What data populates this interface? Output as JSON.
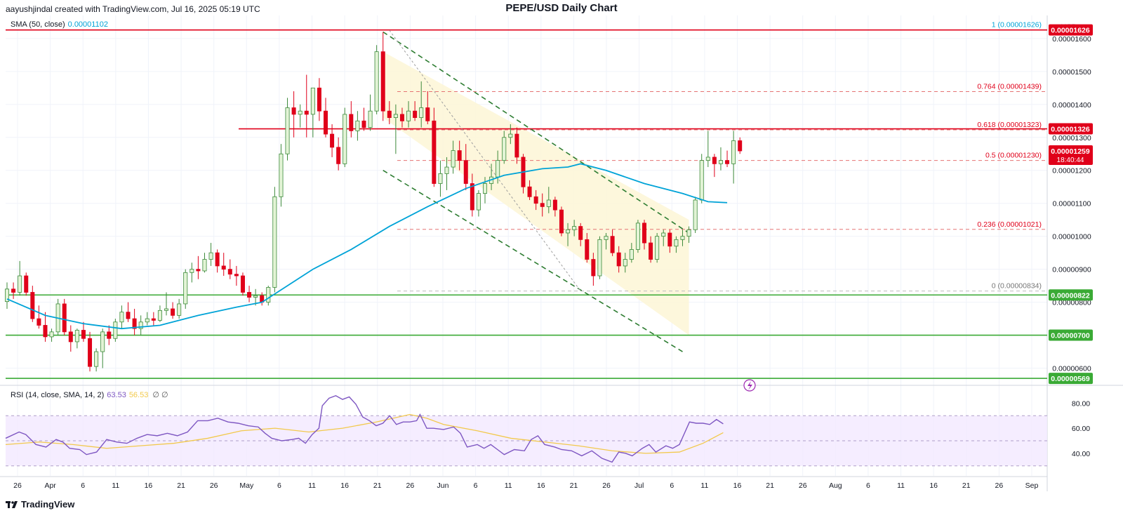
{
  "header": {
    "author_line": "aayushjindal created with TradingView.com, Jul 16, 2025 05:19 UTC",
    "title": "PEPE/USD Daily Chart"
  },
  "legend": {
    "sma_label": "SMA (50, close)",
    "sma_value": "0.00001102",
    "rsi_label": "RSI (14, close, SMA, 14, 2)",
    "rsi_value": "63.53",
    "rsi_sma_value": "56.53",
    "rsi_extra": "∅ ∅"
  },
  "footer": {
    "logo_text": "TradingView"
  },
  "currency": "USD",
  "colors": {
    "up": "#26a69a",
    "up_body": "#e3f4d6",
    "down": "#e0001a",
    "sma": "#00a3d7",
    "rsi": "#7e57c2",
    "rsi_sma": "#f2c94c",
    "support": "#3aaa35",
    "resistance": "#e0001a",
    "channel": "#2e7d32",
    "fib": "#e57373"
  },
  "chart_data": {
    "type": "candlestick",
    "title": "PEPE/USD Daily Chart",
    "price_axis": {
      "min": 5.5e-06,
      "max": 1.67e-05,
      "ticks": [
        "0.00000600",
        "0.00000700",
        "0.00000800",
        "0.00000900",
        "0.00001000",
        "0.00001100",
        "0.00001200",
        "0.00001300",
        "0.00001400",
        "0.00001500",
        "0.00001600"
      ]
    },
    "time_axis": {
      "ticks": [
        "26",
        "Apr",
        "6",
        "11",
        "16",
        "21",
        "26",
        "May",
        "6",
        "11",
        "16",
        "21",
        "26",
        "Jun",
        "6",
        "11",
        "16",
        "21",
        "26",
        "Jul",
        "6",
        "11",
        "16",
        "21",
        "26",
        "Aug",
        "6",
        "11",
        "16",
        "21",
        "26",
        "Sep"
      ]
    },
    "candles": [
      {
        "o": 8.02,
        "h": 8.6,
        "l": 7.8,
        "c": 8.4
      },
      {
        "o": 8.4,
        "h": 8.6,
        "l": 8.1,
        "c": 8.3
      },
      {
        "o": 8.3,
        "h": 9.25,
        "l": 8.2,
        "c": 8.8
      },
      {
        "o": 8.8,
        "h": 8.9,
        "l": 8.2,
        "c": 8.3
      },
      {
        "o": 8.3,
        "h": 8.5,
        "l": 7.4,
        "c": 7.5
      },
      {
        "o": 7.5,
        "h": 7.9,
        "l": 7.2,
        "c": 7.3
      },
      {
        "o": 7.3,
        "h": 7.7,
        "l": 6.8,
        "c": 6.95
      },
      {
        "o": 6.95,
        "h": 7.2,
        "l": 6.8,
        "c": 7.1
      },
      {
        "o": 7.1,
        "h": 8.1,
        "l": 7.0,
        "c": 7.95
      },
      {
        "o": 7.95,
        "h": 8.1,
        "l": 7.0,
        "c": 7.1
      },
      {
        "o": 7.1,
        "h": 7.3,
        "l": 6.5,
        "c": 6.8
      },
      {
        "o": 6.8,
        "h": 7.2,
        "l": 6.6,
        "c": 7.15
      },
      {
        "o": 7.15,
        "h": 7.4,
        "l": 6.8,
        "c": 6.9
      },
      {
        "o": 6.9,
        "h": 7.1,
        "l": 5.9,
        "c": 6.05
      },
      {
        "o": 6.05,
        "h": 6.6,
        "l": 5.9,
        "c": 6.5
      },
      {
        "o": 6.5,
        "h": 7.2,
        "l": 6.0,
        "c": 7.1
      },
      {
        "o": 7.1,
        "h": 7.3,
        "l": 6.7,
        "c": 6.9
      },
      {
        "o": 6.9,
        "h": 7.5,
        "l": 6.8,
        "c": 7.4
      },
      {
        "o": 7.4,
        "h": 7.9,
        "l": 7.2,
        "c": 7.7
      },
      {
        "o": 7.7,
        "h": 8.0,
        "l": 7.4,
        "c": 7.5
      },
      {
        "o": 7.5,
        "h": 7.8,
        "l": 7.0,
        "c": 7.2
      },
      {
        "o": 7.2,
        "h": 7.6,
        "l": 7.0,
        "c": 7.4
      },
      {
        "o": 7.4,
        "h": 7.7,
        "l": 7.3,
        "c": 7.5
      },
      {
        "o": 7.5,
        "h": 7.7,
        "l": 7.3,
        "c": 7.45
      },
      {
        "o": 7.45,
        "h": 7.9,
        "l": 7.4,
        "c": 7.75
      },
      {
        "o": 7.75,
        "h": 8.3,
        "l": 7.6,
        "c": 7.8
      },
      {
        "o": 7.8,
        "h": 8.0,
        "l": 7.5,
        "c": 7.6
      },
      {
        "o": 7.6,
        "h": 8.1,
        "l": 7.5,
        "c": 7.95
      },
      {
        "o": 7.95,
        "h": 9.0,
        "l": 7.8,
        "c": 8.9
      },
      {
        "o": 8.9,
        "h": 9.2,
        "l": 8.6,
        "c": 9.0
      },
      {
        "o": 9.0,
        "h": 9.4,
        "l": 8.7,
        "c": 8.95
      },
      {
        "o": 8.95,
        "h": 9.5,
        "l": 8.9,
        "c": 9.3
      },
      {
        "o": 9.3,
        "h": 9.8,
        "l": 9.1,
        "c": 9.5
      },
      {
        "o": 9.5,
        "h": 9.6,
        "l": 8.9,
        "c": 9.1
      },
      {
        "o": 9.1,
        "h": 9.5,
        "l": 8.8,
        "c": 9.0
      },
      {
        "o": 9.0,
        "h": 9.3,
        "l": 8.7,
        "c": 8.85
      },
      {
        "o": 8.85,
        "h": 9.1,
        "l": 8.5,
        "c": 8.8
      },
      {
        "o": 8.8,
        "h": 8.9,
        "l": 8.2,
        "c": 8.3
      },
      {
        "o": 8.3,
        "h": 8.5,
        "l": 8.0,
        "c": 8.15
      },
      {
        "o": 8.15,
        "h": 8.4,
        "l": 7.9,
        "c": 8.2
      },
      {
        "o": 8.2,
        "h": 8.3,
        "l": 7.9,
        "c": 8.0
      },
      {
        "o": 8.0,
        "h": 8.5,
        "l": 7.9,
        "c": 8.45
      },
      {
        "o": 8.45,
        "h": 11.5,
        "l": 8.3,
        "c": 11.2
      },
      {
        "o": 11.2,
        "h": 12.8,
        "l": 10.9,
        "c": 12.5
      },
      {
        "o": 12.5,
        "h": 14.2,
        "l": 12.3,
        "c": 13.9
      },
      {
        "o": 13.9,
        "h": 14.4,
        "l": 13.0,
        "c": 13.7
      },
      {
        "o": 13.7,
        "h": 14.0,
        "l": 13.3,
        "c": 13.8
      },
      {
        "o": 13.8,
        "h": 14.9,
        "l": 13.0,
        "c": 13.7
      },
      {
        "o": 13.7,
        "h": 14.5,
        "l": 13.0,
        "c": 14.5
      },
      {
        "o": 14.5,
        "h": 14.8,
        "l": 13.5,
        "c": 13.8
      },
      {
        "o": 13.8,
        "h": 14.2,
        "l": 13.0,
        "c": 13.1
      },
      {
        "o": 13.1,
        "h": 13.4,
        "l": 12.4,
        "c": 12.7
      },
      {
        "o": 12.7,
        "h": 13.0,
        "l": 12.0,
        "c": 12.2
      },
      {
        "o": 12.2,
        "h": 13.9,
        "l": 12.1,
        "c": 13.7
      },
      {
        "o": 13.7,
        "h": 14.1,
        "l": 13.0,
        "c": 13.2
      },
      {
        "o": 13.2,
        "h": 13.8,
        "l": 12.9,
        "c": 13.5
      },
      {
        "o": 13.5,
        "h": 13.9,
        "l": 13.2,
        "c": 13.3
      },
      {
        "o": 13.3,
        "h": 14.3,
        "l": 13.2,
        "c": 13.8
      },
      {
        "o": 13.8,
        "h": 15.8,
        "l": 13.7,
        "c": 15.6
      },
      {
        "o": 15.6,
        "h": 16.2,
        "l": 13.5,
        "c": 13.8
      },
      {
        "o": 13.8,
        "h": 14.1,
        "l": 13.4,
        "c": 13.6
      },
      {
        "o": 13.6,
        "h": 14.0,
        "l": 12.5,
        "c": 13.7
      },
      {
        "o": 13.7,
        "h": 13.9,
        "l": 13.3,
        "c": 13.5
      },
      {
        "o": 13.5,
        "h": 14.1,
        "l": 13.3,
        "c": 13.8
      },
      {
        "o": 13.8,
        "h": 14.1,
        "l": 13.5,
        "c": 13.6
      },
      {
        "o": 13.6,
        "h": 14.7,
        "l": 13.3,
        "c": 13.9
      },
      {
        "o": 13.9,
        "h": 14.4,
        "l": 13.4,
        "c": 13.5
      },
      {
        "o": 13.5,
        "h": 13.9,
        "l": 11.5,
        "c": 11.6
      },
      {
        "o": 11.6,
        "h": 12.3,
        "l": 11.2,
        "c": 11.9
      },
      {
        "o": 11.9,
        "h": 12.4,
        "l": 11.4,
        "c": 12.1
      },
      {
        "o": 12.1,
        "h": 12.9,
        "l": 11.9,
        "c": 12.6
      },
      {
        "o": 12.6,
        "h": 12.9,
        "l": 12.0,
        "c": 12.3
      },
      {
        "o": 12.3,
        "h": 12.8,
        "l": 11.4,
        "c": 11.6
      },
      {
        "o": 11.6,
        "h": 11.9,
        "l": 10.6,
        "c": 10.8
      },
      {
        "o": 10.8,
        "h": 11.4,
        "l": 10.6,
        "c": 11.3
      },
      {
        "o": 11.3,
        "h": 11.8,
        "l": 11.0,
        "c": 11.6
      },
      {
        "o": 11.6,
        "h": 12.2,
        "l": 11.4,
        "c": 11.8
      },
      {
        "o": 11.8,
        "h": 12.6,
        "l": 11.6,
        "c": 12.3
      },
      {
        "o": 12.3,
        "h": 13.2,
        "l": 12.2,
        "c": 13.0
      },
      {
        "o": 13.0,
        "h": 13.4,
        "l": 12.8,
        "c": 13.1
      },
      {
        "o": 13.1,
        "h": 13.3,
        "l": 12.2,
        "c": 12.4
      },
      {
        "o": 12.4,
        "h": 12.5,
        "l": 11.3,
        "c": 11.5
      },
      {
        "o": 11.5,
        "h": 11.7,
        "l": 11.1,
        "c": 11.2
      },
      {
        "o": 11.2,
        "h": 11.4,
        "l": 10.8,
        "c": 11.0
      },
      {
        "o": 11.0,
        "h": 11.3,
        "l": 10.6,
        "c": 10.9
      },
      {
        "o": 10.9,
        "h": 11.5,
        "l": 10.7,
        "c": 11.1
      },
      {
        "o": 11.1,
        "h": 11.2,
        "l": 10.6,
        "c": 10.8
      },
      {
        "o": 10.8,
        "h": 10.9,
        "l": 10.0,
        "c": 10.1
      },
      {
        "o": 10.1,
        "h": 10.4,
        "l": 9.7,
        "c": 10.2
      },
      {
        "o": 10.2,
        "h": 10.5,
        "l": 10.0,
        "c": 10.3
      },
      {
        "o": 10.3,
        "h": 10.4,
        "l": 9.7,
        "c": 9.9
      },
      {
        "o": 9.9,
        "h": 10.1,
        "l": 9.2,
        "c": 9.3
      },
      {
        "o": 9.3,
        "h": 9.5,
        "l": 8.5,
        "c": 8.8
      },
      {
        "o": 8.8,
        "h": 10.0,
        "l": 8.7,
        "c": 9.9
      },
      {
        "o": 9.9,
        "h": 10.1,
        "l": 9.6,
        "c": 10.0
      },
      {
        "o": 10.0,
        "h": 10.2,
        "l": 9.4,
        "c": 9.5
      },
      {
        "o": 9.5,
        "h": 9.7,
        "l": 8.9,
        "c": 9.1
      },
      {
        "o": 9.1,
        "h": 9.5,
        "l": 8.9,
        "c": 9.3
      },
      {
        "o": 9.3,
        "h": 9.8,
        "l": 9.2,
        "c": 9.6
      },
      {
        "o": 9.6,
        "h": 10.5,
        "l": 9.5,
        "c": 10.4
      },
      {
        "o": 10.4,
        "h": 10.5,
        "l": 9.6,
        "c": 9.8
      },
      {
        "o": 9.8,
        "h": 10.0,
        "l": 9.2,
        "c": 9.3
      },
      {
        "o": 9.3,
        "h": 10.1,
        "l": 9.2,
        "c": 10.0
      },
      {
        "o": 10.0,
        "h": 10.2,
        "l": 9.7,
        "c": 10.1
      },
      {
        "o": 10.1,
        "h": 10.2,
        "l": 9.5,
        "c": 9.7
      },
      {
        "o": 9.7,
        "h": 10.0,
        "l": 9.5,
        "c": 9.9
      },
      {
        "o": 9.9,
        "h": 10.2,
        "l": 9.7,
        "c": 10.0
      },
      {
        "o": 10.0,
        "h": 10.3,
        "l": 9.8,
        "c": 10.2
      },
      {
        "o": 10.2,
        "h": 11.2,
        "l": 10.1,
        "c": 11.1
      },
      {
        "o": 11.1,
        "h": 12.5,
        "l": 11.0,
        "c": 12.3
      },
      {
        "o": 12.3,
        "h": 13.2,
        "l": 12.1,
        "c": 12.4
      },
      {
        "o": 12.4,
        "h": 12.5,
        "l": 11.8,
        "c": 12.2
      },
      {
        "o": 12.2,
        "h": 12.7,
        "l": 12.0,
        "c": 12.3
      },
      {
        "o": 12.3,
        "h": 12.6,
        "l": 12.1,
        "c": 12.2
      },
      {
        "o": 12.2,
        "h": 13.2,
        "l": 11.6,
        "c": 12.9
      },
      {
        "o": 12.9,
        "h": 13.0,
        "l": 12.5,
        "c": 12.59
      }
    ],
    "sma50": [
      [
        0,
        8.1
      ],
      [
        6,
        7.6
      ],
      [
        12,
        7.35
      ],
      [
        18,
        7.2
      ],
      [
        24,
        7.3
      ],
      [
        30,
        7.6
      ],
      [
        36,
        7.85
      ],
      [
        40,
        8.0
      ],
      [
        44,
        8.5
      ],
      [
        48,
        9.0
      ],
      [
        54,
        9.6
      ],
      [
        60,
        10.3
      ],
      [
        66,
        10.9
      ],
      [
        72,
        11.45
      ],
      [
        78,
        11.85
      ],
      [
        84,
        12.05
      ],
      [
        88,
        12.1
      ],
      [
        90,
        12.2
      ],
      [
        94,
        12.0
      ],
      [
        100,
        11.6
      ],
      [
        106,
        11.3
      ],
      [
        110,
        11.05
      ],
      [
        113,
        11.02
      ]
    ],
    "levels": {
      "resistance_top": 1.626e-05,
      "resistance": 1.326e-05,
      "support_1": 8.22e-06,
      "support_2": 7e-06,
      "support_3": 5.69e-06,
      "current_price": "0.00001259",
      "countdown": "18:40:44"
    },
    "fibonacci": [
      {
        "level": "1",
        "price": "0.00001626",
        "v": 16.26
      },
      {
        "level": "0.764",
        "price": "0.00001439",
        "v": 14.39
      },
      {
        "level": "0.618",
        "price": "0.00001323",
        "v": 13.23
      },
      {
        "level": "0.5",
        "price": "0.00001230",
        "v": 12.3
      },
      {
        "level": "0.236",
        "price": "0.00001021",
        "v": 10.21
      },
      {
        "level": "0",
        "price": "0.00000834",
        "v": 8.34
      }
    ],
    "axis_labels": {
      "resistance_top": "0.00001626",
      "resistance": "0.00001326",
      "support_1": "0.00000822",
      "support_2": "0.00000700",
      "support_3": "0.00000569"
    },
    "rsi": {
      "ticks": [
        "40.00",
        "60.00",
        "80.00"
      ],
      "range": [
        22,
        92
      ],
      "upper": 70,
      "lower": 30,
      "mid": 50,
      "values": [
        [
          0,
          52
        ],
        [
          4,
          57
        ],
        [
          6,
          55
        ],
        [
          9,
          47
        ],
        [
          12,
          45
        ],
        [
          15,
          51
        ],
        [
          17,
          49
        ],
        [
          19,
          44
        ],
        [
          22,
          43
        ],
        [
          24,
          39
        ],
        [
          27,
          41
        ],
        [
          30,
          51
        ],
        [
          33,
          49
        ],
        [
          36,
          48
        ],
        [
          39,
          52
        ],
        [
          42,
          55
        ],
        [
          45,
          54
        ],
        [
          48,
          56
        ],
        [
          51,
          54
        ],
        [
          54,
          57
        ],
        [
          57,
          66
        ],
        [
          60,
          66
        ],
        [
          63,
          68
        ],
        [
          66,
          65
        ],
        [
          69,
          64
        ],
        [
          72,
          62
        ],
        [
          75,
          61
        ],
        [
          77,
          56
        ],
        [
          79,
          52
        ],
        [
          82,
          50
        ],
        [
          85,
          51
        ],
        [
          87,
          52
        ],
        [
          89,
          48
        ],
        [
          91,
          55
        ],
        [
          93,
          60
        ],
        [
          94,
          78
        ],
        [
          96,
          84
        ],
        [
          98,
          86
        ],
        [
          100,
          83
        ],
        [
          102,
          85
        ],
        [
          104,
          79
        ],
        [
          106,
          69
        ],
        [
          108,
          66
        ],
        [
          110,
          62
        ],
        [
          112,
          64
        ],
        [
          114,
          70
        ],
        [
          116,
          63
        ],
        [
          118,
          65
        ],
        [
          120,
          65
        ],
        [
          122,
          66
        ],
        [
          123,
          71
        ],
        [
          125,
          60
        ],
        [
          127,
          60
        ],
        [
          130,
          59
        ],
        [
          133,
          61
        ],
        [
          135,
          56
        ],
        [
          137,
          45
        ],
        [
          140,
          47
        ],
        [
          142,
          44
        ],
        [
          144,
          47
        ],
        [
          146,
          43
        ],
        [
          148,
          39
        ],
        [
          151,
          43
        ],
        [
          154,
          42
        ],
        [
          156,
          51
        ],
        [
          158,
          54
        ],
        [
          160,
          47
        ],
        [
          163,
          45
        ],
        [
          165,
          43
        ],
        [
          168,
          42
        ],
        [
          171,
          38
        ],
        [
          174,
          42
        ],
        [
          177,
          36
        ],
        [
          180,
          33
        ],
        [
          182,
          41
        ],
        [
          184,
          40
        ],
        [
          186,
          38
        ],
        [
          189,
          44
        ],
        [
          191,
          47
        ],
        [
          193,
          41
        ],
        [
          196,
          46
        ],
        [
          198,
          44
        ],
        [
          200,
          47
        ],
        [
          203,
          65
        ],
        [
          205,
          64
        ],
        [
          207,
          64
        ],
        [
          209,
          63
        ],
        [
          211,
          67
        ],
        [
          213,
          63.5
        ]
      ],
      "rsi_sma": [
        [
          0,
          47
        ],
        [
          10,
          49
        ],
        [
          20,
          47
        ],
        [
          30,
          44
        ],
        [
          40,
          46
        ],
        [
          50,
          48
        ],
        [
          60,
          52
        ],
        [
          70,
          58
        ],
        [
          80,
          60
        ],
        [
          90,
          57
        ],
        [
          100,
          60
        ],
        [
          110,
          65
        ],
        [
          120,
          71
        ],
        [
          125,
          68
        ],
        [
          130,
          63
        ],
        [
          140,
          58
        ],
        [
          150,
          52
        ],
        [
          160,
          49
        ],
        [
          170,
          46
        ],
        [
          180,
          42
        ],
        [
          190,
          40
        ],
        [
          200,
          41
        ],
        [
          207,
          48
        ],
        [
          213,
          56.5
        ]
      ]
    }
  }
}
